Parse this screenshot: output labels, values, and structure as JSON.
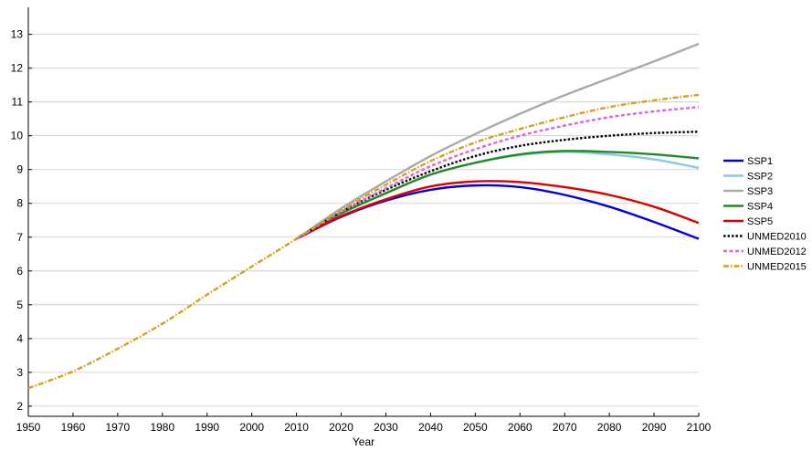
{
  "chart_data": {
    "type": "line",
    "title": "",
    "xlabel": "Year",
    "ylabel": "",
    "xlim": [
      1950,
      2100
    ],
    "ylim": [
      1.7,
      13.8
    ],
    "xticks": [
      1950,
      1960,
      1970,
      1980,
      1990,
      2000,
      2010,
      2020,
      2030,
      2040,
      2050,
      2060,
      2070,
      2080,
      2090,
      2100
    ],
    "yticks": [
      2,
      3,
      4,
      5,
      6,
      7,
      8,
      9,
      10,
      11,
      12,
      13
    ],
    "grid": "horizontal",
    "legend_position": "right",
    "series": [
      {
        "name": "SSP1",
        "color": "#0000dd",
        "dash": "solid",
        "x": [
          2010,
          2020,
          2030,
          2040,
          2050,
          2060,
          2070,
          2080,
          2090,
          2100
        ],
        "y": [
          6.95,
          7.6,
          8.08,
          8.4,
          8.53,
          8.48,
          8.25,
          7.9,
          7.45,
          6.95
        ]
      },
      {
        "name": "SSP2",
        "color": "#88c8ee",
        "dash": "solid",
        "x": [
          2010,
          2020,
          2030,
          2040,
          2050,
          2060,
          2070,
          2080,
          2090,
          2100
        ],
        "y": [
          6.95,
          7.7,
          8.3,
          8.85,
          9.2,
          9.43,
          9.52,
          9.45,
          9.3,
          9.05
        ]
      },
      {
        "name": "SSP3",
        "color": "#aaaaaa",
        "dash": "solid",
        "x": [
          2010,
          2020,
          2030,
          2040,
          2050,
          2060,
          2070,
          2080,
          2090,
          2100
        ],
        "y": [
          6.95,
          7.85,
          8.65,
          9.4,
          10.05,
          10.65,
          11.2,
          11.7,
          12.2,
          12.72
        ]
      },
      {
        "name": "SSP4",
        "color": "#228b22",
        "dash": "solid",
        "x": [
          2010,
          2020,
          2030,
          2040,
          2050,
          2060,
          2070,
          2080,
          2090,
          2100
        ],
        "y": [
          6.95,
          7.7,
          8.3,
          8.85,
          9.2,
          9.45,
          9.55,
          9.52,
          9.45,
          9.33
        ]
      },
      {
        "name": "SSP5",
        "color": "#dd0000",
        "dash": "solid",
        "x": [
          2010,
          2020,
          2030,
          2040,
          2050,
          2060,
          2070,
          2080,
          2090,
          2100
        ],
        "y": [
          6.95,
          7.62,
          8.12,
          8.5,
          8.65,
          8.63,
          8.48,
          8.25,
          7.9,
          7.42
        ]
      },
      {
        "name": "UNMED2010",
        "color": "#000000",
        "dash": "dotted",
        "x": [
          2010,
          2020,
          2030,
          2040,
          2050,
          2060,
          2070,
          2080,
          2090,
          2100
        ],
        "y": [
          6.95,
          7.75,
          8.4,
          8.95,
          9.4,
          9.7,
          9.88,
          10.0,
          10.08,
          10.12
        ]
      },
      {
        "name": "UNMED2012",
        "color": "#dd66dd",
        "dash": "dashed",
        "x": [
          2010,
          2020,
          2030,
          2040,
          2050,
          2060,
          2070,
          2080,
          2090,
          2100
        ],
        "y": [
          6.95,
          7.75,
          8.45,
          9.1,
          9.6,
          10.0,
          10.3,
          10.55,
          10.72,
          10.85
        ]
      },
      {
        "name": "UNMED2015",
        "color": "#d4a020",
        "dash": "dashdot",
        "x": [
          1950,
          1960,
          1970,
          1980,
          1990,
          2000,
          2010,
          2020,
          2030,
          2040,
          2050,
          2060,
          2070,
          2080,
          2090,
          2100
        ],
        "y": [
          2.53,
          3.03,
          3.7,
          4.44,
          5.3,
          6.13,
          6.95,
          7.8,
          8.55,
          9.25,
          9.8,
          10.2,
          10.55,
          10.85,
          11.05,
          11.21
        ]
      }
    ]
  }
}
